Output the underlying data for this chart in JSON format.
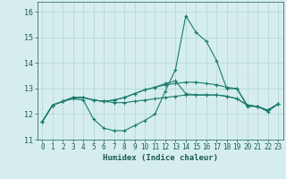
{
  "title": "",
  "xlabel": "Humidex (Indice chaleur)",
  "ylabel": "",
  "bg_color": "#d5eeed",
  "grid_color": "#b8d8d5",
  "line_color": "#1a7a6e",
  "xlim": [
    -0.5,
    23.5
  ],
  "ylim": [
    11.0,
    16.4
  ],
  "yticks": [
    11,
    12,
    13,
    14,
    15,
    16
  ],
  "xticks": [
    0,
    1,
    2,
    3,
    4,
    5,
    6,
    7,
    8,
    9,
    10,
    11,
    12,
    13,
    14,
    15,
    16,
    17,
    18,
    19,
    20,
    21,
    22,
    23
  ],
  "series": [
    [
      11.7,
      12.35,
      12.5,
      12.6,
      12.55,
      11.8,
      11.45,
      11.35,
      11.35,
      11.55,
      11.75,
      12.0,
      12.9,
      13.75,
      15.85,
      15.2,
      14.85,
      14.1,
      13.0,
      13.0,
      12.3,
      12.3,
      12.1,
      12.4
    ],
    [
      11.7,
      12.35,
      12.5,
      12.65,
      12.65,
      12.55,
      12.5,
      12.45,
      12.45,
      12.5,
      12.55,
      12.6,
      12.65,
      12.7,
      12.75,
      12.75,
      12.75,
      12.75,
      12.7,
      12.6,
      12.35,
      12.3,
      12.15,
      12.4
    ],
    [
      11.7,
      12.35,
      12.5,
      12.65,
      12.65,
      12.55,
      12.5,
      12.55,
      12.65,
      12.8,
      12.95,
      13.05,
      13.15,
      13.2,
      13.25,
      13.25,
      13.2,
      13.15,
      13.05,
      13.0,
      12.35,
      12.3,
      12.15,
      12.4
    ],
    [
      11.7,
      12.35,
      12.5,
      12.65,
      12.65,
      12.55,
      12.5,
      12.55,
      12.65,
      12.8,
      12.95,
      13.05,
      13.2,
      13.3,
      12.8,
      12.75,
      12.75,
      12.75,
      12.7,
      12.6,
      12.35,
      12.3,
      12.15,
      12.4
    ]
  ]
}
